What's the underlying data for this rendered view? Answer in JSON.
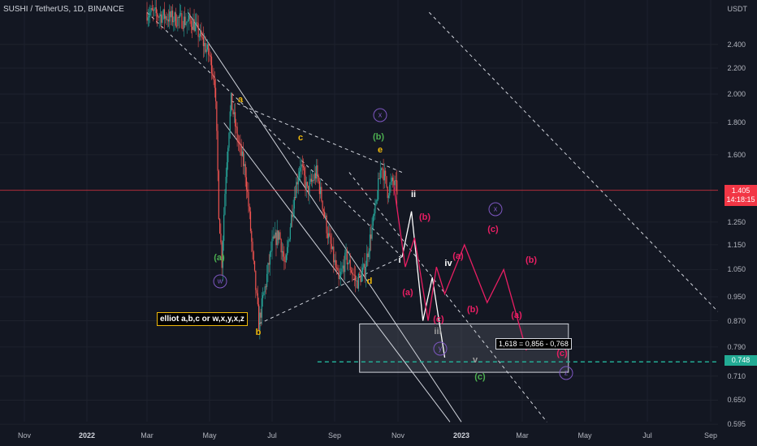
{
  "header": {
    "symbol_title": "SUSHI / TetherUS, 1D, BINANCE",
    "currency": "USDT"
  },
  "price_tags": {
    "current_price": "1.405",
    "countdown": "14:18:15",
    "level_price": "0.748"
  },
  "annotations": {
    "note": "elliot a,b,c or w,x,y,x,z",
    "fib_note": "1,618 = 0,856 - 0,768"
  },
  "wave_labels": [
    {
      "id": "a",
      "text": "a",
      "color": "#f0b90b"
    },
    {
      "id": "b",
      "text": "b",
      "color": "#f0b90b"
    },
    {
      "id": "c",
      "text": "c",
      "color": "#f0b90b"
    },
    {
      "id": "d",
      "text": "d",
      "color": "#f0b90b"
    },
    {
      "id": "e",
      "text": "e",
      "color": "#f0b90b"
    },
    {
      "id": "green-a",
      "text": "(a)",
      "color": "#4caf50"
    },
    {
      "id": "green-b",
      "text": "(b)",
      "color": "#4caf50"
    },
    {
      "id": "green-c",
      "text": "(c)",
      "color": "#4caf50"
    },
    {
      "id": "ii",
      "text": "ii",
      "color": "#ffffff"
    },
    {
      "id": "i",
      "text": "i",
      "color": "#ffffff"
    },
    {
      "id": "iv",
      "text": "iv",
      "color": "#ffffff"
    },
    {
      "id": "iii",
      "text": "iii",
      "color": "#9e9e9e"
    },
    {
      "id": "v",
      "text": "v",
      "color": "#9e9e9e"
    },
    {
      "id": "red-b1",
      "text": "(b)",
      "color": "#e91e63"
    },
    {
      "id": "red-a1",
      "text": "(a)",
      "color": "#e91e63"
    },
    {
      "id": "red-c1",
      "text": "(c)",
      "color": "#e91e63"
    },
    {
      "id": "red-a2",
      "text": "(a)",
      "color": "#e91e63"
    },
    {
      "id": "red-b2",
      "text": "(b)",
      "color": "#e91e63"
    },
    {
      "id": "red-c2",
      "text": "(c)",
      "color": "#e91e63"
    },
    {
      "id": "red-a3",
      "text": "(a)",
      "color": "#e91e63"
    },
    {
      "id": "red-b3",
      "text": "(b)",
      "color": "#e91e63"
    },
    {
      "id": "red-c3",
      "text": "(c)",
      "color": "#e91e63"
    }
  ],
  "circle_labels": [
    {
      "id": "w",
      "text": "w"
    },
    {
      "id": "x1",
      "text": "x"
    },
    {
      "id": "x2",
      "text": "x"
    },
    {
      "id": "y",
      "text": "y"
    },
    {
      "id": "z",
      "text": "z"
    }
  ],
  "colors": {
    "background": "#131722",
    "up": "#26a69a",
    "down": "#ef5350",
    "price_line": "#f23645",
    "level_line": "#22ab94",
    "projection_white": "#ffffff",
    "projection_red": "#e91e63"
  },
  "chart_data": {
    "type": "candlestick",
    "title": "SUSHI / TetherUS, 1D, BINANCE",
    "y_scale": "log",
    "ylim": [
      0.595,
      2.7
    ],
    "y_ticks": [
      "2.400",
      "2.200",
      "2.000",
      "1.800",
      "1.600",
      "1.250",
      "1.150",
      "1.050",
      "0.950",
      "0.870",
      "0.790",
      "0.710",
      "0.650",
      "0.595"
    ],
    "x_ticks": [
      "Nov",
      "2022",
      "Mar",
      "May",
      "Jul",
      "Sep",
      "Nov",
      "2023",
      "Mar",
      "May",
      "Jul",
      "Sep"
    ],
    "current_price": 1.405,
    "horizontal_level": 0.748,
    "target_zone": [
      0.72,
      0.86
    ],
    "price_path": [
      [
        "2022-03-01",
        2.7
      ],
      [
        "2022-04-15",
        2.6
      ],
      [
        "2022-05-01",
        2.3
      ],
      [
        "2022-05-06",
        2.1
      ],
      [
        "2022-05-10",
        1.3
      ],
      [
        "2022-05-13",
        1.08
      ],
      [
        "2022-05-17",
        1.5
      ],
      [
        "2022-05-22",
        1.95
      ],
      [
        "2022-05-28",
        1.7
      ],
      [
        "2022-06-05",
        1.5
      ],
      [
        "2022-06-12",
        1.1
      ],
      [
        "2022-06-18",
        0.86
      ],
      [
        "2022-06-25",
        1.0
      ],
      [
        "2022-07-01",
        1.15
      ],
      [
        "2022-07-08",
        1.2
      ],
      [
        "2022-07-14",
        1.05
      ],
      [
        "2022-07-22",
        1.35
      ],
      [
        "2022-07-29",
        1.55
      ],
      [
        "2022-08-05",
        1.4
      ],
      [
        "2022-08-14",
        1.5
      ],
      [
        "2022-08-25",
        1.2
      ],
      [
        "2022-09-05",
        1.0
      ],
      [
        "2022-09-12",
        1.1
      ],
      [
        "2022-09-22",
        1.0
      ],
      [
        "2022-09-30",
        1.05
      ],
      [
        "2022-10-10",
        1.3
      ],
      [
        "2022-10-16",
        1.55
      ],
      [
        "2022-10-22",
        1.4
      ],
      [
        "2022-10-27",
        1.45
      ],
      [
        "2022-10-31",
        1.405
      ]
    ],
    "projection_white": [
      [
        "2022-11-05",
        1.1
      ],
      [
        "2022-11-14",
        1.3
      ],
      [
        "2022-11-25",
        0.87
      ],
      [
        "2022-12-04",
        1.02
      ],
      [
        "2022-12-16",
        0.76
      ]
    ],
    "projection_red": [
      [
        "2022-10-28",
        1.43
      ],
      [
        "2022-11-08",
        1.06
      ],
      [
        "2022-11-17",
        1.18
      ],
      [
        "2022-11-30",
        0.87
      ],
      [
        "2022-12-08",
        1.06
      ],
      [
        "2022-12-16",
        0.96
      ],
      [
        "2023-01-04",
        1.15
      ],
      [
        "2023-01-26",
        0.93
      ],
      [
        "2023-02-11",
        1.05
      ],
      [
        "2023-03-05",
        0.78
      ]
    ],
    "trendlines": [
      {
        "style": "dashed",
        "from": [
          "2022-03-01",
          2.7
        ],
        "to": [
          "2022-11-05",
          1.1
        ]
      },
      {
        "style": "dashed",
        "from": [
          "2022-05-22",
          1.95
        ],
        "to": [
          "2022-11-05",
          1.5
        ]
      },
      {
        "style": "dashed",
        "from": [
          "2022-06-18",
          0.86
        ],
        "to": [
          "2022-11-05",
          1.1
        ]
      },
      {
        "style": "dashed",
        "from": [
          "2022-09-15",
          1.5
        ],
        "to": [
          "2023-03-25",
          0.6
        ]
      },
      {
        "style": "dashed",
        "from": [
          "2022-12-01",
          2.7
        ],
        "to": [
          "2023-09-08",
          0.9
        ]
      },
      {
        "style": "solid",
        "from": [
          "2022-04-10",
          2.7
        ],
        "to": [
          "2023-01-01",
          0.6
        ]
      },
      {
        "style": "solid",
        "from": [
          "2022-05-15",
          1.8
        ],
        "to": [
          "2022-12-21",
          0.6
        ]
      }
    ]
  }
}
